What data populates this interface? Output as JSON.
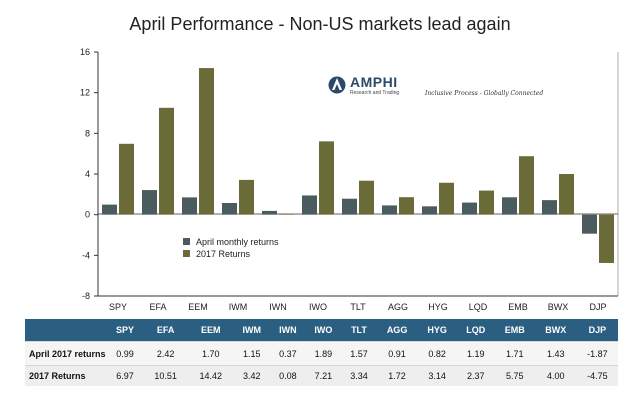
{
  "header": {
    "title": "April Performance - Non-US markets lead again"
  },
  "logo": {
    "name": "AMPHI",
    "sub": "Research and Trading",
    "tagline": "Inclusive Process - Globally Connected"
  },
  "colors": {
    "series1": "#4b5c5f",
    "series2": "#6b6b3a",
    "table_header": "#2b5f82"
  },
  "chart_data": {
    "type": "bar",
    "title": "April Performance - Non-US markets lead again",
    "categories": [
      "SPY",
      "EFA",
      "EEM",
      "IWM",
      "IWN",
      "IWO",
      "TLT",
      "AGG",
      "HYG",
      "LQD",
      "EMB",
      "BWX",
      "DJP"
    ],
    "series": [
      {
        "name": "April monthly returns",
        "values": [
          0.99,
          2.42,
          1.7,
          1.15,
          0.37,
          1.89,
          1.57,
          0.91,
          0.82,
          1.19,
          1.71,
          1.43,
          -1.87
        ]
      },
      {
        "name": "2017 Returns",
        "values": [
          6.97,
          10.51,
          14.42,
          3.42,
          0.08,
          7.21,
          3.34,
          1.72,
          3.14,
          2.37,
          5.75,
          4.0,
          -4.75
        ]
      }
    ],
    "ylim": [
      -8,
      16
    ],
    "yticks": [
      "16",
      "12",
      "8",
      "4",
      "0",
      "-4",
      "-8"
    ],
    "legend_position": "center-left",
    "grid": false
  },
  "table": {
    "headers": [
      "SPY",
      "EFA",
      "EEM",
      "IWM",
      "IWN",
      "IWO",
      "TLT",
      "AGG",
      "HYG",
      "LQD",
      "EMB",
      "BWX",
      "DJP"
    ],
    "rows": [
      {
        "label": "April 2017 returns",
        "values": [
          "0.99",
          "2.42",
          "1.70",
          "1.15",
          "0.37",
          "1.89",
          "1.57",
          "0.91",
          "0.82",
          "1.19",
          "1.71",
          "1.43",
          "-1.87"
        ]
      },
      {
        "label": "2017 Returns",
        "values": [
          "6.97",
          "10.51",
          "14.42",
          "3.42",
          "0.08",
          "7.21",
          "3.34",
          "1.72",
          "3.14",
          "2.37",
          "5.75",
          "4.00",
          "-4.75"
        ]
      }
    ]
  }
}
